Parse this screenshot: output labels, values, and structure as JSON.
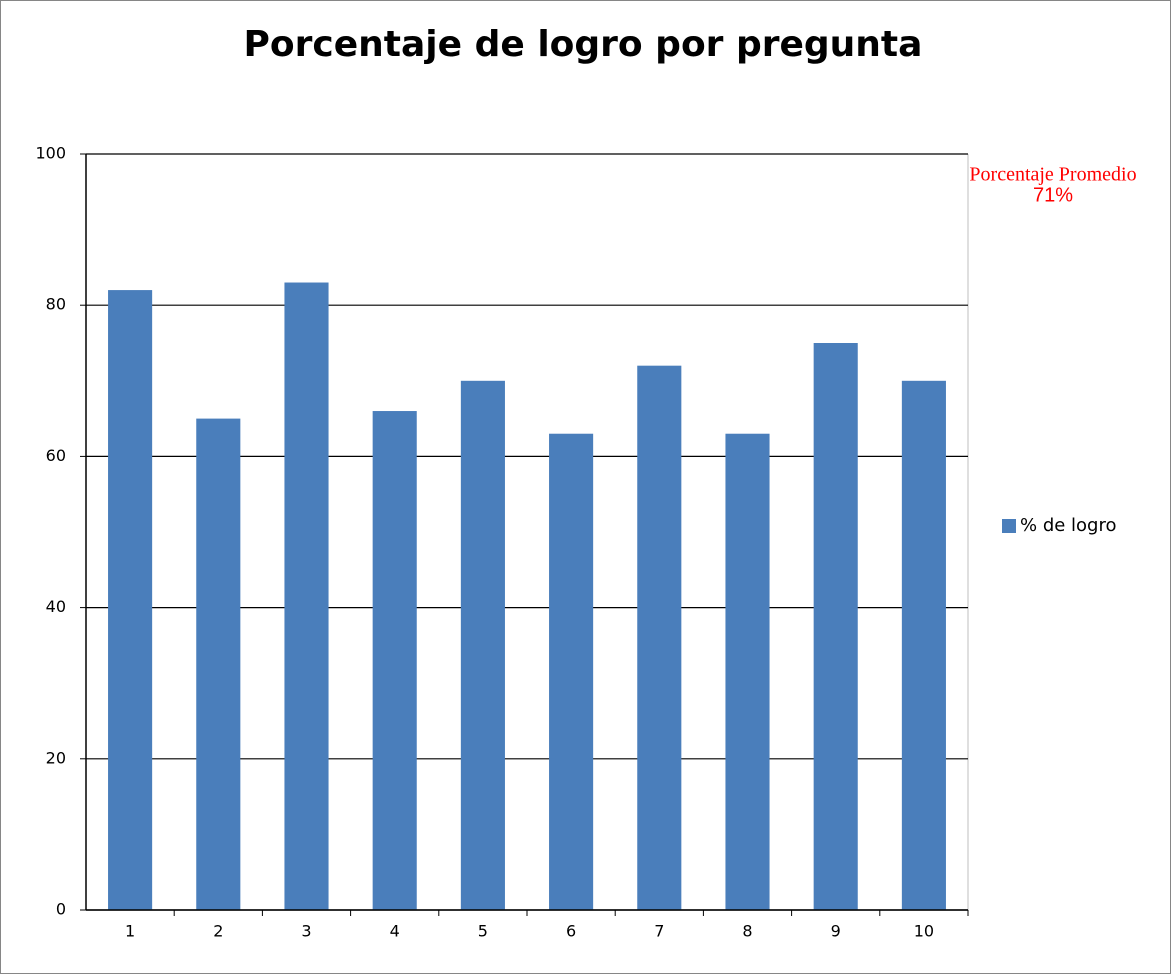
{
  "chart_data": {
    "type": "bar",
    "title": "Porcentaje de logro por pregunta",
    "categories": [
      "1",
      "2",
      "3",
      "4",
      "5",
      "6",
      "7",
      "8",
      "9",
      "10"
    ],
    "series": [
      {
        "name": "% de logro",
        "color": "#4a7ebb",
        "values": [
          82,
          65,
          83,
          66,
          70,
          63,
          72,
          63,
          75,
          70
        ]
      }
    ],
    "ylim": [
      0,
      100
    ],
    "yticks": [
      0,
      20,
      40,
      60,
      80,
      100
    ],
    "grid": true,
    "legend": "right",
    "annotations": [
      "Porcentaje Promedio",
      "71%"
    ]
  }
}
